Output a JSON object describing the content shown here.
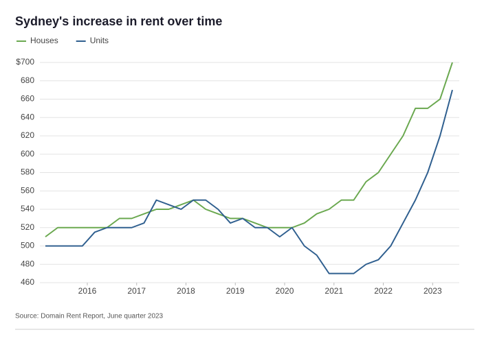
{
  "chart_data": {
    "type": "line",
    "title": "Sydney's increase in rent over time",
    "source": "Source: Domain Rent Report, June quarter 2023",
    "x": [
      2015.15,
      2015.4,
      2015.65,
      2015.9,
      2016.15,
      2016.4,
      2016.65,
      2016.9,
      2017.15,
      2017.4,
      2017.65,
      2017.9,
      2018.15,
      2018.4,
      2018.65,
      2018.9,
      2019.15,
      2019.4,
      2019.65,
      2019.9,
      2020.15,
      2020.4,
      2020.65,
      2020.9,
      2021.15,
      2021.4,
      2021.65,
      2021.9,
      2022.15,
      2022.4,
      2022.65,
      2022.9,
      2023.15,
      2023.4
    ],
    "series": [
      {
        "name": "Houses",
        "color": "#6aa84f",
        "values": [
          510,
          520,
          520,
          520,
          520,
          520,
          530,
          530,
          535,
          540,
          540,
          545,
          550,
          540,
          535,
          530,
          530,
          525,
          520,
          520,
          520,
          525,
          535,
          540,
          550,
          550,
          570,
          580,
          600,
          620,
          650,
          650,
          660,
          700
        ]
      },
      {
        "name": "Units",
        "color": "#2f5f8f",
        "values": [
          500,
          500,
          500,
          500,
          515,
          520,
          520,
          520,
          525,
          550,
          545,
          540,
          550,
          550,
          540,
          525,
          530,
          520,
          520,
          510,
          520,
          500,
          490,
          470,
          470,
          470,
          480,
          485,
          500,
          525,
          550,
          580,
          620,
          670
        ]
      }
    ],
    "xlim": [
      2015.0,
      2023.6
    ],
    "xticks": [
      2016,
      2017,
      2018,
      2019,
      2020,
      2021,
      2022,
      2023
    ],
    "ylim": [
      460,
      700
    ],
    "yticks": [
      460,
      480,
      500,
      520,
      540,
      560,
      580,
      600,
      620,
      640,
      660,
      680,
      {
        "value": 700,
        "label": "$700"
      }
    ],
    "grid": true
  }
}
